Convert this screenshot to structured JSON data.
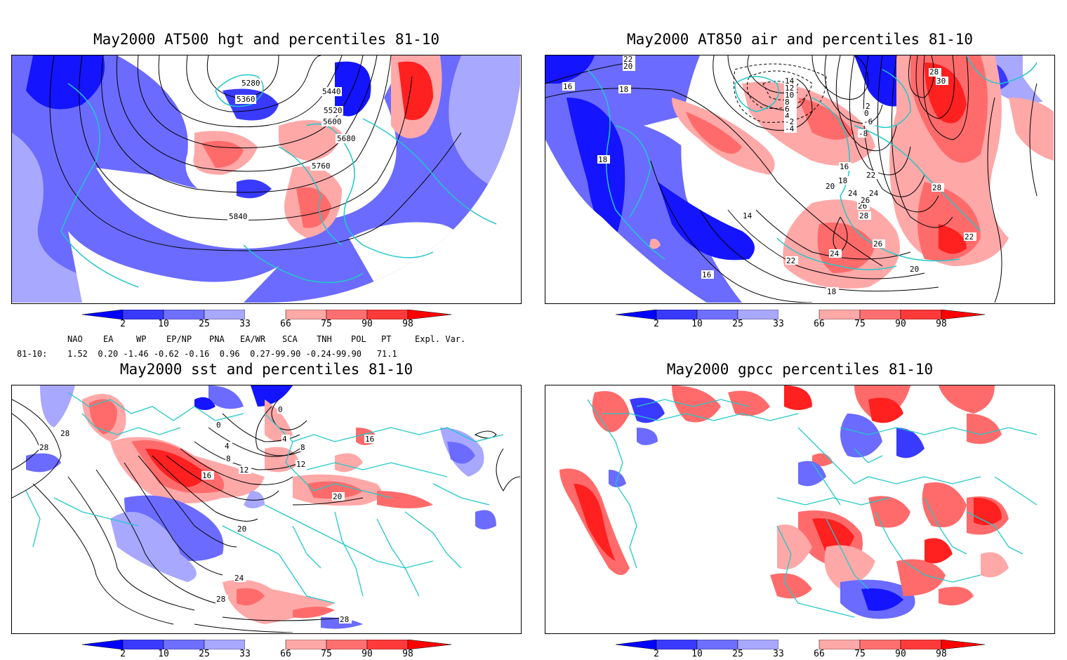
{
  "panels": [
    {
      "title": "May2000 AT500 hgt and percentiles 81-10",
      "contour_labels": [
        "5280",
        "5360",
        "5440",
        "5520",
        "5600",
        "5680",
        "5760",
        "5840"
      ]
    },
    {
      "title": "May2000 AT850 air and percentiles 81-10",
      "contour_labels": [
        "22",
        "20",
        "16",
        "18",
        "18",
        "14",
        "12",
        "10",
        "8",
        "6",
        "4",
        "2",
        "0",
        "-2",
        "-4",
        "-6",
        "-8",
        "30",
        "28",
        "28",
        "22",
        "20",
        "24",
        "26",
        "18",
        "14",
        "16",
        "20",
        "22",
        "24",
        "26",
        "28",
        "26",
        "24",
        "22",
        "18",
        "16"
      ]
    },
    {
      "title": "May2000 sst and percentiles 81-10",
      "contour_labels": [
        "0",
        "0",
        "4",
        "4",
        "8",
        "8",
        "12",
        "12",
        "16",
        "16",
        "20",
        "20",
        "24",
        "28",
        "28",
        "28",
        "28"
      ]
    },
    {
      "title": "May2000 gpcc percentiles 81-10",
      "contour_labels": []
    }
  ],
  "colorbar": {
    "labels": [
      "2",
      "10",
      "25",
      "33",
      "66",
      "75",
      "90",
      "98"
    ],
    "colors": [
      "#0000ff",
      "#3a3aff",
      "#6f6fff",
      "#a8a8ff",
      "#ffffff",
      "#ffa8a8",
      "#ff6f6f",
      "#ff3a3a",
      "#ff0000"
    ]
  },
  "teleconnections": {
    "headers": [
      "NAO",
      "EA",
      "WP",
      "EP/NP",
      "PNA",
      "EA/WR",
      "SCA",
      "TNH",
      "POL",
      "PT",
      "Expl. Var."
    ],
    "row_label": "81-10:",
    "values": "1.52  0.20 -1.46 -0.62 -0.16  0.96  0.27-99.90 -0.24-99.90   71.1"
  },
  "colors": {
    "coast": "#22c8c8",
    "blue_dark": "#1414ff",
    "blue_mid": "#6b6bff",
    "blue_light": "#a8a8ff",
    "red_light": "#ffa8a8",
    "red_mid": "#ff6b6b",
    "red_dark": "#ff2020"
  }
}
